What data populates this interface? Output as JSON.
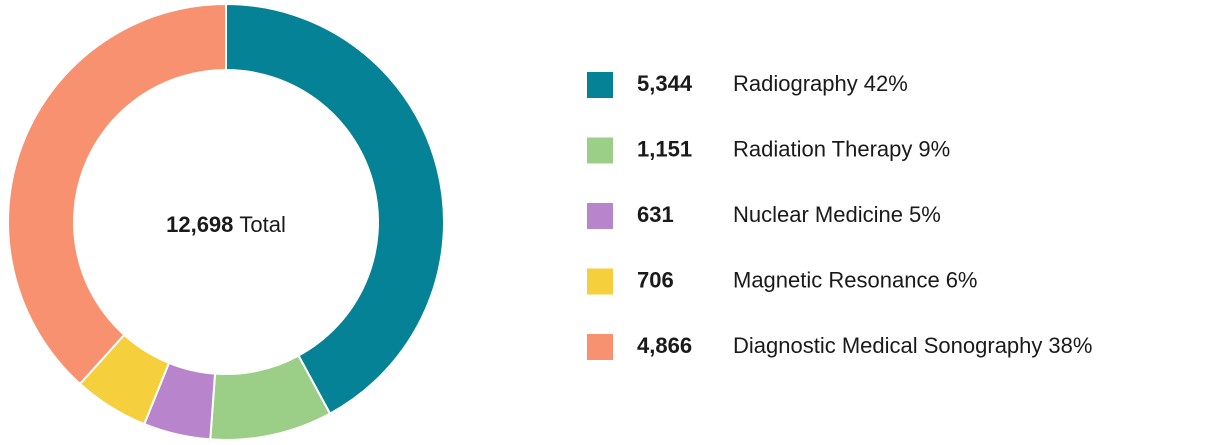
{
  "chart_data": {
    "type": "donut",
    "categories": [
      "Radiography",
      "Radiation Therapy",
      "Nuclear Medicine",
      "Magnetic Resonance",
      "Diagnostic Medical Sonography"
    ],
    "values": [
      5344,
      1151,
      631,
      706,
      4866
    ],
    "value_labels": [
      "5,344",
      "1,151",
      "631",
      "706",
      "4,866"
    ],
    "percent_labels": [
      "42%",
      "9%",
      "5%",
      "6%",
      "38%"
    ],
    "colors": [
      "#058296",
      "#9bcf88",
      "#b884cb",
      "#f5cf3c",
      "#f7916f"
    ],
    "total": 12698,
    "total_label": "12,698",
    "total_text": "Total"
  }
}
